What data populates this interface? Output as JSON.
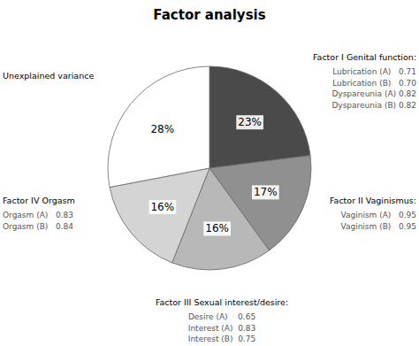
{
  "chart_data": {
    "type": "pie",
    "title": "Factor analysis",
    "categories": [
      "Factor I Genital function:",
      "Factor II Vaginismus:",
      "Factor III Sexual interest/desire:",
      "Factor IV Orgasm",
      "Unexplained variance"
    ],
    "values": [
      23,
      17,
      16,
      16,
      28
    ],
    "value_labels": [
      "23%",
      "17%",
      "16%",
      "16%",
      "28%"
    ],
    "colors": [
      "#4a4a4a",
      "#909090",
      "#b8b8b8",
      "#d4d4d4",
      "#ffffff"
    ],
    "data_labels": true,
    "annotations": [
      [
        "Lubrication (A)   0.71",
        "Lubrication (B)   0.70",
        "Dyspareunia (A) 0.82",
        "Dyspareunia (B) 0.82"
      ],
      [
        "Vaginism (A)   0.95",
        "Vaginism (B)   0.95"
      ],
      [
        "Desire (A)    0.65",
        "Interest (A)  0.83",
        "Interest (B)  0.75"
      ],
      [
        "Orgasm (A)   0.83",
        "Orgasm (B)   0.84"
      ],
      []
    ]
  }
}
